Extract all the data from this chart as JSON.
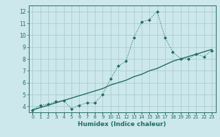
{
  "title": "",
  "xlabel": "Humidex (Indice chaleur)",
  "ylabel": "",
  "bg_color": "#cce8ec",
  "grid_color": "#aacccc",
  "line_color": "#1e6b5e",
  "x_data": [
    0,
    1,
    2,
    3,
    4,
    5,
    6,
    7,
    8,
    9,
    10,
    11,
    12,
    13,
    14,
    15,
    16,
    17,
    18,
    19,
    20,
    21,
    22,
    23
  ],
  "y_scatter": [
    3.7,
    4.1,
    4.2,
    4.4,
    4.5,
    3.8,
    4.1,
    4.3,
    4.3,
    5.0,
    6.3,
    7.4,
    7.8,
    9.8,
    11.1,
    11.3,
    12.0,
    9.8,
    8.6,
    8.0,
    8.0,
    8.4,
    8.2,
    8.7
  ],
  "y_regression": [
    3.7,
    3.9,
    4.1,
    4.3,
    4.5,
    4.7,
    4.9,
    5.1,
    5.3,
    5.5,
    5.8,
    6.0,
    6.2,
    6.5,
    6.7,
    7.0,
    7.2,
    7.5,
    7.8,
    8.0,
    8.2,
    8.4,
    8.6,
    8.8
  ],
  "ylim": [
    3.5,
    12.5
  ],
  "xlim": [
    -0.5,
    23.5
  ],
  "yticks": [
    4,
    5,
    6,
    7,
    8,
    9,
    10,
    11,
    12
  ],
  "xtick_labels": [
    "0",
    "1",
    "2",
    "3",
    "4",
    "5",
    "6",
    "7",
    "8",
    "9",
    "10",
    "11",
    "12",
    "13",
    "14",
    "15",
    "16",
    "17",
    "18",
    "19",
    "20",
    "21",
    "22",
    "23"
  ]
}
